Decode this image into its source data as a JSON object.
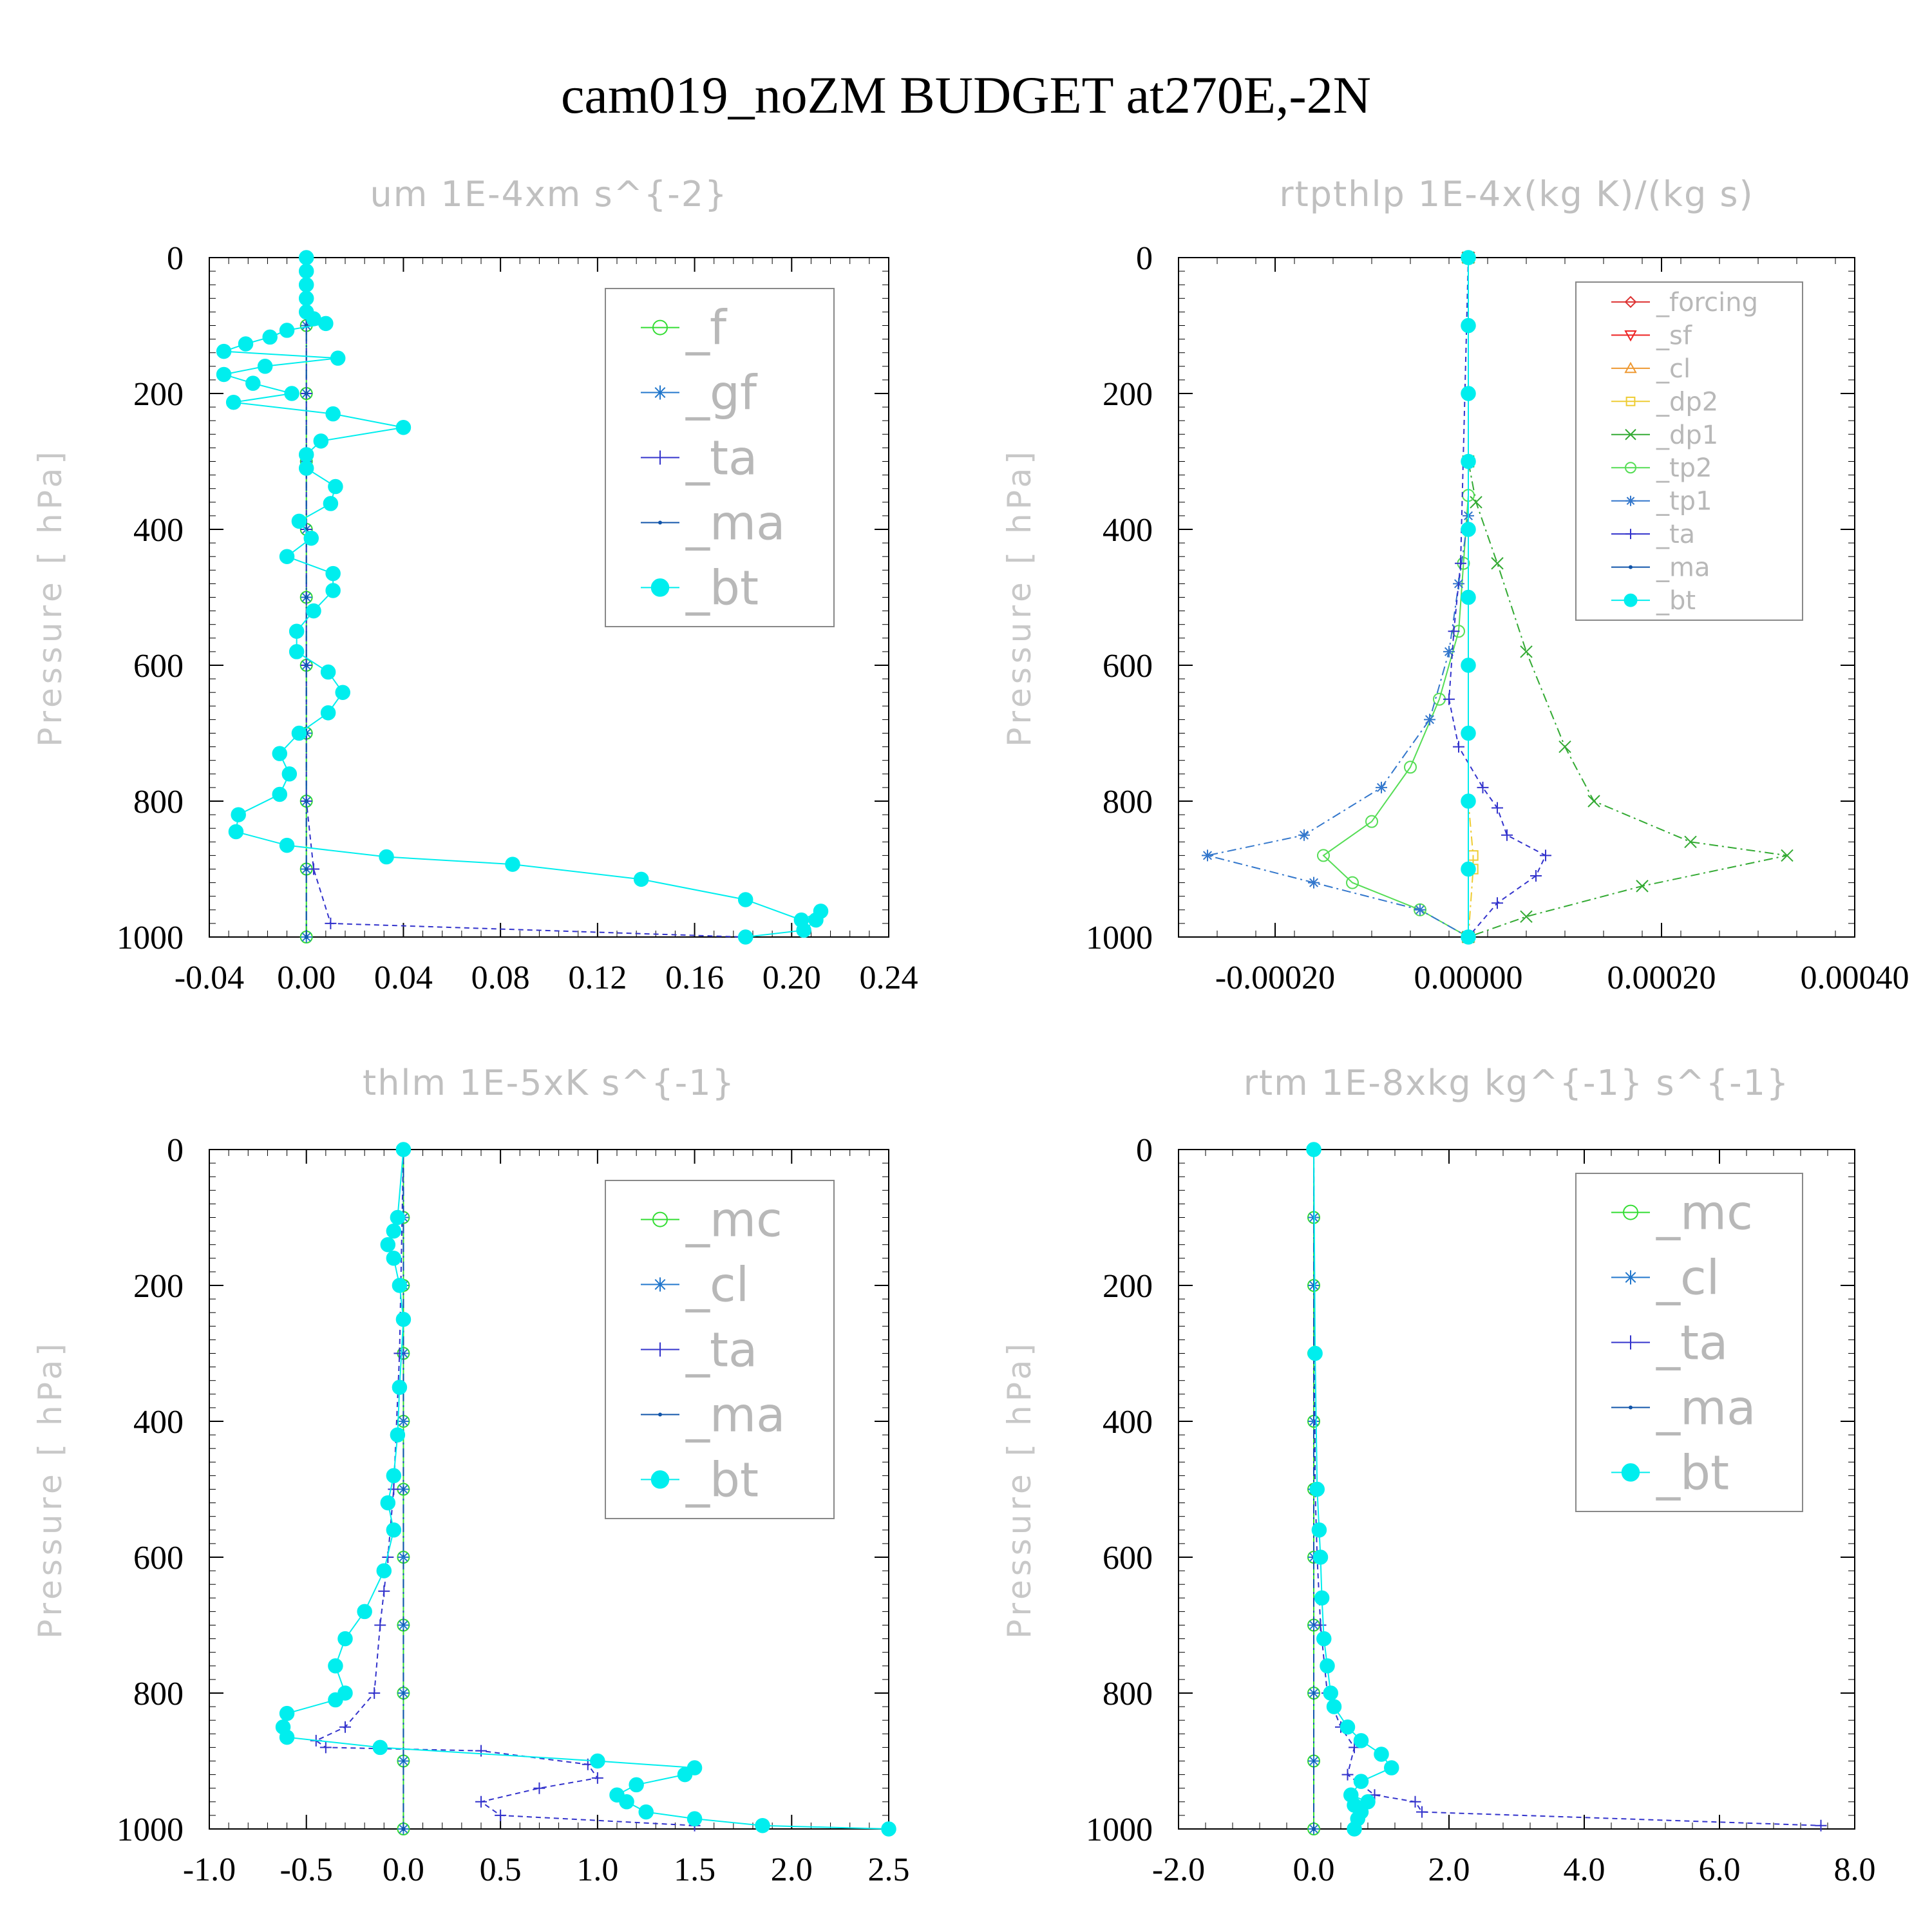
{
  "title": "cam019_noZM  BUDGET at270E,-2N",
  "chart_data": [
    {
      "type": "line",
      "title": "um  1E-4xm s^{-2}",
      "ylabel": "Pressure [ hPa]",
      "xlabel": "",
      "xlim": [
        -0.04,
        0.24
      ],
      "ylim": [
        1000,
        0
      ],
      "xticks": [
        "-0.04",
        "0.00",
        "0.04",
        "0.08",
        "0.12",
        "0.16",
        "0.20",
        "0.24"
      ],
      "yticks": [
        "0",
        "200",
        "400",
        "600",
        "800",
        "1000"
      ],
      "legend_position": "top-right",
      "legend": [
        "_f",
        "_gf",
        "_ta",
        "_ma",
        "_bt"
      ],
      "series": [
        {
          "name": "_f",
          "color": "#33dd33",
          "marker": "circle-open",
          "x": [
            0,
            0,
            0,
            0,
            0,
            0,
            0,
            0,
            0,
            0,
            0
          ],
          "y": [
            0,
            100,
            200,
            300,
            400,
            500,
            600,
            700,
            800,
            900,
            1000
          ]
        },
        {
          "name": "_gf",
          "color": "#2277cc",
          "marker": "asterisk",
          "x": [
            0,
            0,
            0,
            0,
            0,
            0,
            0,
            0,
            0,
            0,
            0
          ],
          "y": [
            0,
            100,
            200,
            300,
            400,
            500,
            600,
            700,
            800,
            900,
            1000
          ]
        },
        {
          "name": "_ta",
          "color": "#3333cc",
          "marker": "plus",
          "x": [
            0,
            0,
            0,
            0,
            0,
            0.003,
            0.01,
            0.18
          ],
          "y": [
            0,
            200,
            400,
            600,
            800,
            900,
            980,
            1000
          ]
        },
        {
          "name": "_ma",
          "color": "#1155aa",
          "marker": "dot",
          "x": [
            0,
            0,
            0,
            0,
            0,
            0,
            0,
            0,
            0,
            0,
            0
          ],
          "y": [
            0,
            100,
            200,
            300,
            400,
            500,
            600,
            700,
            800,
            900,
            1000
          ]
        },
        {
          "name": "_bt",
          "color": "#00eeee",
          "marker": "circle-filled",
          "x": [
            0,
            0,
            0,
            0,
            0,
            0.003,
            0.008,
            -0.008,
            -0.015,
            -0.025,
            -0.034,
            0.013,
            -0.017,
            -0.034,
            -0.022,
            -0.006,
            -0.03,
            0.011,
            0.04,
            0.006,
            0,
            0,
            0.012,
            0.01,
            -0.003,
            0.002,
            -0.008,
            0.011,
            0.011,
            0.003,
            -0.004,
            -0.004,
            0.009,
            0.015,
            0.009,
            -0.003,
            -0.011,
            -0.007,
            -0.011,
            -0.028,
            -0.029,
            -0.008,
            0.033,
            0.085,
            0.138,
            0.181,
            0.204,
            0.212,
            0.21,
            0.205,
            0.181
          ],
          "y": [
            0,
            20,
            40,
            60,
            80,
            90,
            97,
            107,
            117,
            127,
            138,
            148,
            160,
            172,
            185,
            200,
            213,
            230,
            250,
            270,
            290,
            310,
            337,
            362,
            388,
            413,
            440,
            465,
            490,
            520,
            550,
            580,
            610,
            640,
            670,
            700,
            730,
            760,
            790,
            820,
            845,
            865,
            882,
            893,
            915,
            945,
            975,
            962,
            975,
            990,
            1000
          ]
        }
      ]
    },
    {
      "type": "line",
      "title": "rtpthlp  1E-4x(kg K)/(kg s)",
      "ylabel": "Pressure [ hPa]",
      "xlabel": "",
      "xlim": [
        -0.0003,
        0.0004
      ],
      "ylim": [
        1000,
        0
      ],
      "xticks": [
        "-0.00020",
        "0.00000",
        "0.00020",
        "0.00040"
      ],
      "xtick_values": [
        -0.0002,
        0,
        0.0002,
        0.0004
      ],
      "yticks": [
        "0",
        "200",
        "400",
        "600",
        "800",
        "1000"
      ],
      "legend_position": "top-right",
      "legend": [
        "_forcing",
        "_sf",
        "_cl",
        "_dp2",
        "_dp1",
        "_tp2",
        "_tp1",
        "_ta",
        "_ma",
        "_bt"
      ],
      "series": [
        {
          "name": "_forcing",
          "color": "#dd3333",
          "marker": "diamond",
          "x": [
            0,
            0,
            0,
            0,
            0,
            0
          ],
          "y": [
            0,
            200,
            400,
            600,
            800,
            1000
          ]
        },
        {
          "name": "_sf",
          "color": "#ee2222",
          "marker": "triangle-down",
          "x": [
            0,
            0
          ],
          "y": [
            0,
            1000
          ]
        },
        {
          "name": "_cl",
          "color": "#ee9933",
          "marker": "triangle-up",
          "x": [
            0,
            0
          ],
          "y": [
            0,
            1000
          ]
        },
        {
          "name": "_dp2",
          "color": "#eecc33",
          "marker": "square",
          "x": [
            0,
            0,
            5e-06,
            5e-06,
            0
          ],
          "y": [
            0,
            800,
            880,
            900,
            1000
          ]
        },
        {
          "name": "_dp1",
          "color": "#33aa33",
          "marker": "x",
          "x": [
            0,
            0,
            8e-06,
            3e-05,
            6e-05,
            0.0001,
            0.00013,
            0.00023,
            0.00033,
            0.00018,
            6e-05,
            0
          ],
          "y": [
            0,
            300,
            360,
            450,
            580,
            720,
            800,
            860,
            880,
            925,
            970,
            1000
          ]
        },
        {
          "name": "_tp2",
          "color": "#55dd55",
          "marker": "circle-open",
          "x": [
            0,
            0,
            -5e-06,
            -1e-05,
            -3e-05,
            -6e-05,
            -0.0001,
            -0.00015,
            -0.00012,
            -5e-05,
            0
          ],
          "y": [
            0,
            350,
            450,
            550,
            650,
            750,
            830,
            880,
            920,
            960,
            1000
          ]
        },
        {
          "name": "_tp1",
          "color": "#3377cc",
          "marker": "asterisk",
          "x": [
            0,
            0,
            -1e-05,
            -2e-05,
            -4e-05,
            -9e-05,
            -0.00017,
            -0.00027,
            -0.00016,
            -5e-05,
            0
          ],
          "y": [
            0,
            380,
            480,
            580,
            680,
            780,
            850,
            880,
            920,
            960,
            1000
          ]
        },
        {
          "name": "_ta",
          "color": "#3333cc",
          "marker": "plus",
          "x": [
            0,
            -8e-06,
            -1.5e-05,
            -2e-05,
            -1e-05,
            1.5e-05,
            3e-05,
            4e-05,
            8e-05,
            7e-05,
            3e-05,
            0
          ],
          "y": [
            0,
            450,
            550,
            650,
            720,
            780,
            810,
            850,
            880,
            910,
            950,
            1000
          ]
        },
        {
          "name": "_ma",
          "color": "#1155aa",
          "marker": "dot",
          "x": [
            0,
            0
          ],
          "y": [
            0,
            1000
          ]
        },
        {
          "name": "_bt",
          "color": "#00eeee",
          "marker": "circle-filled",
          "x": [
            0,
            0,
            0,
            0,
            0,
            0,
            0,
            0,
            0,
            0,
            0
          ],
          "y": [
            0,
            100,
            200,
            300,
            400,
            500,
            600,
            700,
            800,
            900,
            1000
          ]
        }
      ]
    },
    {
      "type": "line",
      "title": "thlm  1E-5xK s^{-1}",
      "ylabel": "Pressure [ hPa]",
      "xlabel": "",
      "xlim": [
        -1.0,
        2.5
      ],
      "ylim": [
        1000,
        0
      ],
      "xticks": [
        "-1.0",
        "-0.5",
        "0.0",
        "0.5",
        "1.0",
        "1.5",
        "2.0",
        "2.5"
      ],
      "yticks": [
        "0",
        "200",
        "400",
        "600",
        "800",
        "1000"
      ],
      "legend_position": "top-right",
      "legend": [
        "_mc",
        "_cl",
        "_ta",
        "_ma",
        "_bt"
      ],
      "series": [
        {
          "name": "_mc",
          "color": "#33dd33",
          "marker": "circle-open",
          "x": [
            0,
            0,
            0,
            0,
            0,
            0,
            0,
            0,
            0,
            0,
            0
          ],
          "y": [
            0,
            100,
            200,
            300,
            400,
            500,
            600,
            700,
            800,
            900,
            1000
          ]
        },
        {
          "name": "_cl",
          "color": "#2277cc",
          "marker": "asterisk",
          "x": [
            0,
            0,
            0,
            0,
            0,
            0,
            0,
            0,
            0,
            0,
            0
          ],
          "y": [
            0,
            100,
            200,
            300,
            400,
            500,
            600,
            700,
            800,
            900,
            1000
          ]
        },
        {
          "name": "_ta",
          "color": "#3333cc",
          "marker": "plus",
          "x": [
            0,
            -0.02,
            -0.05,
            -0.08,
            -0.1,
            -0.12,
            -0.15,
            -0.3,
            -0.45,
            -0.4,
            0.4,
            0.95,
            1.0,
            0.7,
            0.4,
            0.5,
            1.5
          ],
          "y": [
            0,
            300,
            500,
            600,
            650,
            700,
            800,
            850,
            870,
            880,
            885,
            905,
            925,
            940,
            960,
            980,
            995
          ]
        },
        {
          "name": "_ma",
          "color": "#1155aa",
          "marker": "dot",
          "x": [
            0,
            0
          ],
          "y": [
            0,
            1000
          ]
        },
        {
          "name": "_bt",
          "color": "#00eeee",
          "marker": "circle-filled",
          "x": [
            0,
            -0.03,
            -0.05,
            -0.08,
            -0.05,
            -0.02,
            0,
            -0.02,
            -0.03,
            -0.05,
            -0.08,
            -0.05,
            -0.1,
            -0.2,
            -0.3,
            -0.35,
            -0.3,
            -0.35,
            -0.6,
            -0.62,
            -0.6,
            -0.12,
            1.0,
            1.5,
            1.45,
            1.2,
            1.1,
            1.15,
            1.25,
            1.5,
            1.85,
            2.5
          ],
          "y": [
            0,
            100,
            120,
            140,
            160,
            200,
            250,
            350,
            420,
            480,
            520,
            560,
            620,
            680,
            720,
            760,
            800,
            810,
            830,
            850,
            865,
            880,
            900,
            910,
            920,
            935,
            950,
            960,
            975,
            985,
            995,
            1000
          ]
        }
      ]
    },
    {
      "type": "line",
      "title": "rtm  1E-8xkg kg^{-1} s^{-1}",
      "ylabel": "Pressure [ hPa]",
      "xlabel": "",
      "xlim": [
        -2.0,
        8.0
      ],
      "ylim": [
        1000,
        0
      ],
      "xticks": [
        "-2.0",
        "0.0",
        "2.0",
        "4.0",
        "6.0",
        "8.0"
      ],
      "yticks": [
        "0",
        "200",
        "400",
        "600",
        "800",
        "1000"
      ],
      "legend_position": "top-right",
      "legend": [
        "_mc",
        "_cl",
        "_ta",
        "_ma",
        "_bt"
      ],
      "series": [
        {
          "name": "_mc",
          "color": "#33dd33",
          "marker": "circle-open",
          "x": [
            0,
            0,
            0,
            0,
            0,
            0,
            0,
            0,
            0,
            0,
            0
          ],
          "y": [
            0,
            100,
            200,
            300,
            400,
            500,
            600,
            700,
            800,
            900,
            1000
          ]
        },
        {
          "name": "_cl",
          "color": "#2277cc",
          "marker": "asterisk",
          "x": [
            0,
            0,
            0,
            0,
            0,
            0,
            0,
            0,
            0,
            0,
            0
          ],
          "y": [
            0,
            100,
            200,
            300,
            400,
            500,
            600,
            700,
            800,
            900,
            1000
          ]
        },
        {
          "name": "_ta",
          "color": "#3333cc",
          "marker": "plus",
          "x": [
            0,
            0.02,
            0.05,
            0.1,
            0.2,
            0.4,
            0.6,
            0.5,
            0.9,
            1.5,
            1.6,
            7.5
          ],
          "y": [
            0,
            500,
            600,
            700,
            800,
            850,
            880,
            920,
            950,
            960,
            975,
            995
          ]
        },
        {
          "name": "_ma",
          "color": "#1155aa",
          "marker": "dot",
          "x": [
            0,
            0
          ],
          "y": [
            0,
            1000
          ]
        },
        {
          "name": "_bt",
          "color": "#00eeee",
          "marker": "circle-filled",
          "x": [
            0,
            0.02,
            0.05,
            0.08,
            0.1,
            0.12,
            0.15,
            0.2,
            0.25,
            0.3,
            0.5,
            0.7,
            1.0,
            1.15,
            0.7,
            0.55,
            0.8,
            0.6,
            0.7,
            0.65,
            0.6
          ],
          "y": [
            0,
            300,
            500,
            560,
            600,
            660,
            720,
            760,
            800,
            820,
            850,
            870,
            890,
            910,
            930,
            950,
            960,
            965,
            975,
            985,
            1000
          ]
        }
      ]
    }
  ]
}
